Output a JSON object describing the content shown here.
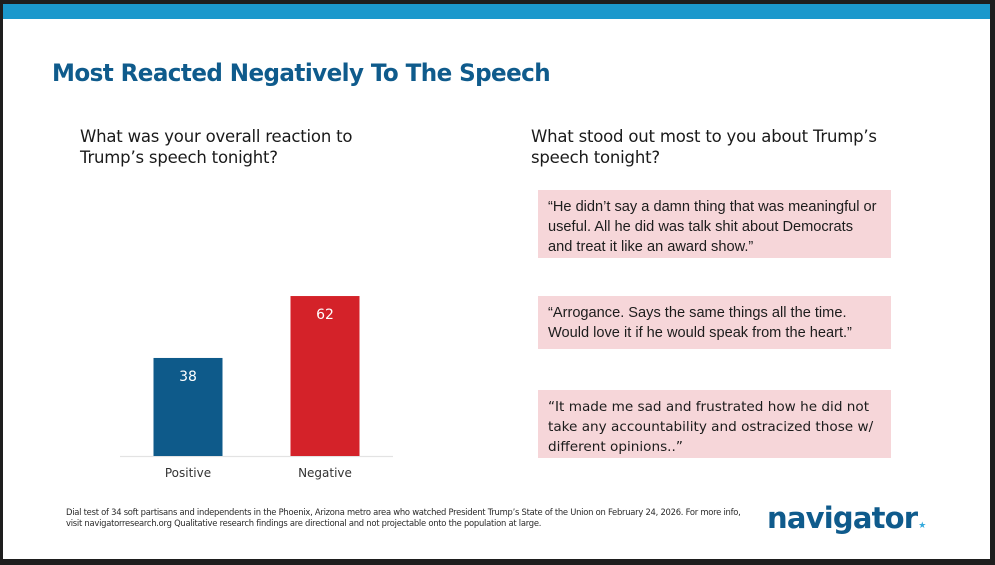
{
  "colors": {
    "accent_bar": "#1b98cc",
    "title": "#0f5b8c",
    "positive": "#0e5a8a",
    "negative": "#d42229",
    "quote_bg": "#f6d6d9",
    "logo_star": "#33aadd"
  },
  "slide": {
    "title": "Most Reacted Negatively To The Speech"
  },
  "left_panel": {
    "question": "What was your overall reaction to Trump’s speech tonight?"
  },
  "right_panel": {
    "question": "What stood out most to you about Trump’s speech tonight?",
    "quotes": [
      "“He didn’t say a damn thing that was meaningful or useful. All he did was talk shit about Democrats and treat it like an award show.”",
      "“Arrogance. Says the same things all the time. Would love it if he would speak from the heart.”",
      "“It made me sad and frustrated how he did not take any accountability and ostracized those w/  different opinions..”"
    ]
  },
  "footer": {
    "footnote": "Dial test of 34 soft partisans and independents in the Phoenix, Arizona metro area who watched President Trump’s State of the Union on February 24, 2026. For more info, visit navigatorresearch.org Qualitative research findings are directional and not projectable onto the population at large.",
    "logo_text": "navigator",
    "logo_mark": "★"
  },
  "chart_data": {
    "type": "bar",
    "title": "What was your overall reaction to Trump’s speech tonight?",
    "categories": [
      "Positive",
      "Negative"
    ],
    "values": [
      38,
      62
    ],
    "value_labels": [
      "38",
      "62"
    ],
    "bar_colors": [
      "#0e5a8a",
      "#d42229"
    ],
    "xlabel": "",
    "ylabel": "",
    "ylim": [
      0,
      100
    ],
    "grid": false,
    "legend": "none",
    "data_labels": "inside-top"
  }
}
